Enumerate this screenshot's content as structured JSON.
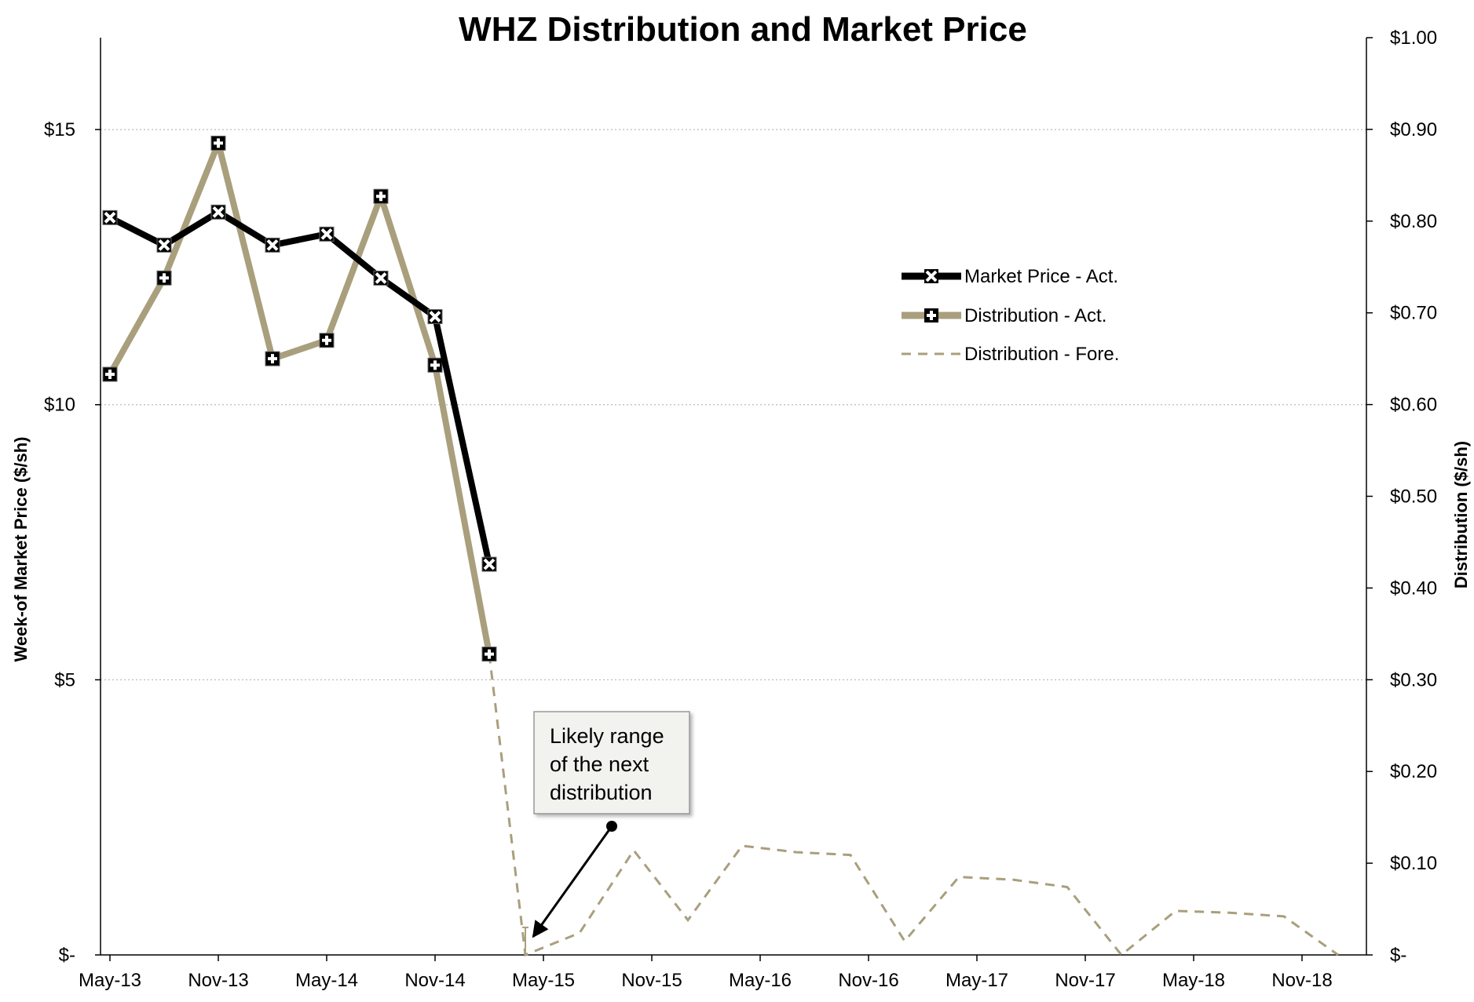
{
  "chart_data": {
    "type": "line",
    "title": "WHZ Distribution and Market Price",
    "ylabel_left": "Week-of Market Price ($/sh)",
    "ylabel_right": "Distribution ($/sh)",
    "x_ticks": [
      "May-13",
      "Nov-13",
      "May-14",
      "Nov-14",
      "May-15",
      "Nov-15",
      "May-16",
      "Nov-16",
      "May-17",
      "Nov-17",
      "May-18",
      "Nov-18"
    ],
    "x_range": [
      "2013-05",
      "2018-12"
    ],
    "y_left": {
      "range": [
        0,
        16.67
      ],
      "ticks": [
        0,
        5,
        10,
        15
      ],
      "tick_labels": [
        "$-",
        "$5",
        "$10",
        "$15"
      ]
    },
    "y_right": {
      "range": [
        0,
        1.0
      ],
      "ticks": [
        0,
        0.1,
        0.2,
        0.3,
        0.4,
        0.5,
        0.6,
        0.7,
        0.8,
        0.9,
        1.0
      ],
      "tick_labels": [
        "$-",
        "$0.10",
        "$0.20",
        "$0.30",
        "$0.40",
        "$0.50",
        "$0.60",
        "$0.70",
        "$0.80",
        "$0.90",
        "$1.00"
      ]
    },
    "grid": "horizontal dotted at left-axis ticks",
    "legend_position": "right-middle",
    "series": [
      {
        "name": "Market Price - Act.",
        "axis": "left",
        "color": "#000000",
        "style": "solid-marker-x",
        "points": [
          [
            "2013-05",
            13.4
          ],
          [
            "2013-08",
            12.9
          ],
          [
            "2013-11",
            13.5
          ],
          [
            "2014-02",
            12.9
          ],
          [
            "2014-05",
            13.1
          ],
          [
            "2014-08",
            12.3
          ],
          [
            "2014-11",
            11.6
          ],
          [
            "2015-02",
            7.1
          ]
        ]
      },
      {
        "name": "Distribution - Act.",
        "axis": "right",
        "color": "#A99F7C",
        "style": "solid-marker-plus",
        "points": [
          [
            "2013-05",
            0.633
          ],
          [
            "2013-08",
            0.738
          ],
          [
            "2013-11",
            0.885
          ],
          [
            "2014-02",
            0.65
          ],
          [
            "2014-05",
            0.67
          ],
          [
            "2014-08",
            0.827
          ],
          [
            "2014-11",
            0.643
          ],
          [
            "2015-02",
            0.328
          ]
        ]
      },
      {
        "name": "Distribution - Fore.",
        "axis": "right",
        "color": "#A99F7C",
        "style": "dashed",
        "points": [
          [
            "2015-02",
            0.328
          ],
          [
            "2015-04",
            0.0
          ],
          [
            "2015-07",
            0.024
          ],
          [
            "2015-10",
            0.114
          ],
          [
            "2016-01",
            0.038
          ],
          [
            "2016-04",
            0.119
          ],
          [
            "2016-07",
            0.112
          ],
          [
            "2016-10",
            0.109
          ],
          [
            "2017-01",
            0.015
          ],
          [
            "2017-04",
            0.085
          ],
          [
            "2017-07",
            0.082
          ],
          [
            "2017-10",
            0.074
          ],
          [
            "2018-01",
            0.0
          ],
          [
            "2018-04",
            0.048
          ],
          [
            "2018-07",
            0.046
          ],
          [
            "2018-10",
            0.042
          ],
          [
            "2019-01",
            0.0
          ]
        ]
      }
    ],
    "range_marker": {
      "series": "Distribution - Fore.",
      "date": "2015-04",
      "low": 0.0,
      "high": 0.03
    },
    "annotation": {
      "lines": [
        "Likely range",
        "of the next",
        "distribution"
      ],
      "points_to": [
        "2015-04",
        0.02
      ]
    }
  }
}
